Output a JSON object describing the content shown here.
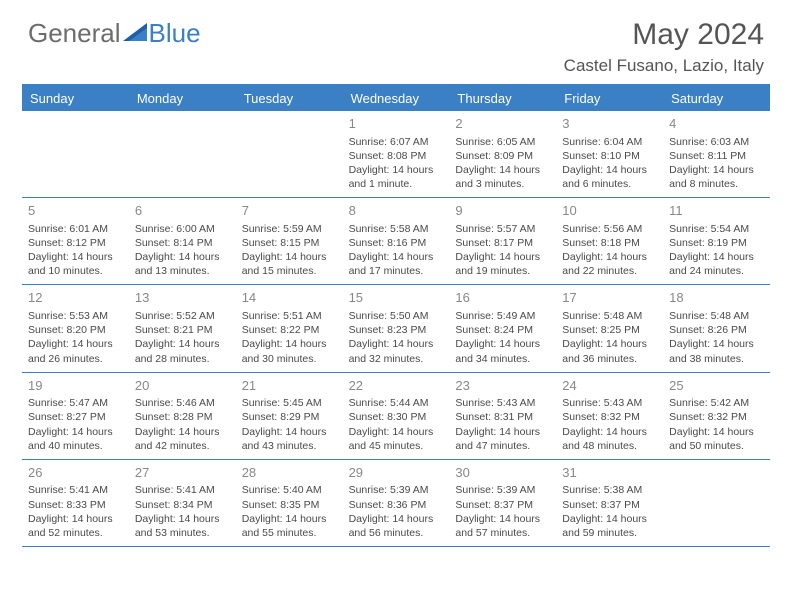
{
  "brand": {
    "general": "General",
    "blue": "Blue"
  },
  "title": "May 2024",
  "location": "Castel Fusano, Lazio, Italy",
  "colors": {
    "header_bg": "#3b7fc4",
    "header_text": "#ffffff",
    "border": "#3b7fc4",
    "day_num": "#888888",
    "body_text": "#4a4a4a",
    "title_text": "#555555",
    "logo_gray": "#6d6d6d"
  },
  "day_names": [
    "Sunday",
    "Monday",
    "Tuesday",
    "Wednesday",
    "Thursday",
    "Friday",
    "Saturday"
  ],
  "weeks": [
    [
      null,
      null,
      null,
      {
        "n": "1",
        "sr": "Sunrise: 6:07 AM",
        "ss": "Sunset: 8:08 PM",
        "dl": "Daylight: 14 hours and 1 minute."
      },
      {
        "n": "2",
        "sr": "Sunrise: 6:05 AM",
        "ss": "Sunset: 8:09 PM",
        "dl": "Daylight: 14 hours and 3 minutes."
      },
      {
        "n": "3",
        "sr": "Sunrise: 6:04 AM",
        "ss": "Sunset: 8:10 PM",
        "dl": "Daylight: 14 hours and 6 minutes."
      },
      {
        "n": "4",
        "sr": "Sunrise: 6:03 AM",
        "ss": "Sunset: 8:11 PM",
        "dl": "Daylight: 14 hours and 8 minutes."
      }
    ],
    [
      {
        "n": "5",
        "sr": "Sunrise: 6:01 AM",
        "ss": "Sunset: 8:12 PM",
        "dl": "Daylight: 14 hours and 10 minutes."
      },
      {
        "n": "6",
        "sr": "Sunrise: 6:00 AM",
        "ss": "Sunset: 8:14 PM",
        "dl": "Daylight: 14 hours and 13 minutes."
      },
      {
        "n": "7",
        "sr": "Sunrise: 5:59 AM",
        "ss": "Sunset: 8:15 PM",
        "dl": "Daylight: 14 hours and 15 minutes."
      },
      {
        "n": "8",
        "sr": "Sunrise: 5:58 AM",
        "ss": "Sunset: 8:16 PM",
        "dl": "Daylight: 14 hours and 17 minutes."
      },
      {
        "n": "9",
        "sr": "Sunrise: 5:57 AM",
        "ss": "Sunset: 8:17 PM",
        "dl": "Daylight: 14 hours and 19 minutes."
      },
      {
        "n": "10",
        "sr": "Sunrise: 5:56 AM",
        "ss": "Sunset: 8:18 PM",
        "dl": "Daylight: 14 hours and 22 minutes."
      },
      {
        "n": "11",
        "sr": "Sunrise: 5:54 AM",
        "ss": "Sunset: 8:19 PM",
        "dl": "Daylight: 14 hours and 24 minutes."
      }
    ],
    [
      {
        "n": "12",
        "sr": "Sunrise: 5:53 AM",
        "ss": "Sunset: 8:20 PM",
        "dl": "Daylight: 14 hours and 26 minutes."
      },
      {
        "n": "13",
        "sr": "Sunrise: 5:52 AM",
        "ss": "Sunset: 8:21 PM",
        "dl": "Daylight: 14 hours and 28 minutes."
      },
      {
        "n": "14",
        "sr": "Sunrise: 5:51 AM",
        "ss": "Sunset: 8:22 PM",
        "dl": "Daylight: 14 hours and 30 minutes."
      },
      {
        "n": "15",
        "sr": "Sunrise: 5:50 AM",
        "ss": "Sunset: 8:23 PM",
        "dl": "Daylight: 14 hours and 32 minutes."
      },
      {
        "n": "16",
        "sr": "Sunrise: 5:49 AM",
        "ss": "Sunset: 8:24 PM",
        "dl": "Daylight: 14 hours and 34 minutes."
      },
      {
        "n": "17",
        "sr": "Sunrise: 5:48 AM",
        "ss": "Sunset: 8:25 PM",
        "dl": "Daylight: 14 hours and 36 minutes."
      },
      {
        "n": "18",
        "sr": "Sunrise: 5:48 AM",
        "ss": "Sunset: 8:26 PM",
        "dl": "Daylight: 14 hours and 38 minutes."
      }
    ],
    [
      {
        "n": "19",
        "sr": "Sunrise: 5:47 AM",
        "ss": "Sunset: 8:27 PM",
        "dl": "Daylight: 14 hours and 40 minutes."
      },
      {
        "n": "20",
        "sr": "Sunrise: 5:46 AM",
        "ss": "Sunset: 8:28 PM",
        "dl": "Daylight: 14 hours and 42 minutes."
      },
      {
        "n": "21",
        "sr": "Sunrise: 5:45 AM",
        "ss": "Sunset: 8:29 PM",
        "dl": "Daylight: 14 hours and 43 minutes."
      },
      {
        "n": "22",
        "sr": "Sunrise: 5:44 AM",
        "ss": "Sunset: 8:30 PM",
        "dl": "Daylight: 14 hours and 45 minutes."
      },
      {
        "n": "23",
        "sr": "Sunrise: 5:43 AM",
        "ss": "Sunset: 8:31 PM",
        "dl": "Daylight: 14 hours and 47 minutes."
      },
      {
        "n": "24",
        "sr": "Sunrise: 5:43 AM",
        "ss": "Sunset: 8:32 PM",
        "dl": "Daylight: 14 hours and 48 minutes."
      },
      {
        "n": "25",
        "sr": "Sunrise: 5:42 AM",
        "ss": "Sunset: 8:32 PM",
        "dl": "Daylight: 14 hours and 50 minutes."
      }
    ],
    [
      {
        "n": "26",
        "sr": "Sunrise: 5:41 AM",
        "ss": "Sunset: 8:33 PM",
        "dl": "Daylight: 14 hours and 52 minutes."
      },
      {
        "n": "27",
        "sr": "Sunrise: 5:41 AM",
        "ss": "Sunset: 8:34 PM",
        "dl": "Daylight: 14 hours and 53 minutes."
      },
      {
        "n": "28",
        "sr": "Sunrise: 5:40 AM",
        "ss": "Sunset: 8:35 PM",
        "dl": "Daylight: 14 hours and 55 minutes."
      },
      {
        "n": "29",
        "sr": "Sunrise: 5:39 AM",
        "ss": "Sunset: 8:36 PM",
        "dl": "Daylight: 14 hours and 56 minutes."
      },
      {
        "n": "30",
        "sr": "Sunrise: 5:39 AM",
        "ss": "Sunset: 8:37 PM",
        "dl": "Daylight: 14 hours and 57 minutes."
      },
      {
        "n": "31",
        "sr": "Sunrise: 5:38 AM",
        "ss": "Sunset: 8:37 PM",
        "dl": "Daylight: 14 hours and 59 minutes."
      },
      null
    ]
  ]
}
